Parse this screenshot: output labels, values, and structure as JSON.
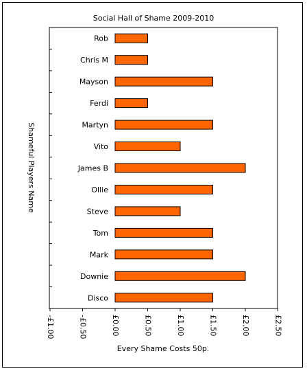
{
  "chart_data": {
    "type": "bar",
    "orientation": "horizontal",
    "title": "Social Hall of Shame 2009-2010",
    "xlabel": "Every Shame Costs 50p.",
    "ylabel": "Shameful Players Name",
    "categories": [
      "Rob",
      "Chris M",
      "Mayson",
      "Ferdi",
      "Martyn",
      "Vito",
      "James B",
      "Ollie",
      "Steve",
      "Tom",
      "Mark",
      "Downie",
      "Disco"
    ],
    "values": [
      0.5,
      0.5,
      1.5,
      0.5,
      1.5,
      1.0,
      2.0,
      1.5,
      1.0,
      1.5,
      1.5,
      2.0,
      1.5
    ],
    "xlim": [
      -1.0,
      2.5
    ],
    "x_ticks": [
      -1.0,
      -0.5,
      0.0,
      0.5,
      1.0,
      1.5,
      2.0,
      2.5
    ],
    "x_tick_labels": [
      "-£1.00",
      "-£0.50",
      "£0.00",
      "£0.50",
      "£1.00",
      "£1.50",
      "£2.00",
      "£2.50"
    ],
    "grid": false,
    "bar_color": "#ff6600"
  }
}
